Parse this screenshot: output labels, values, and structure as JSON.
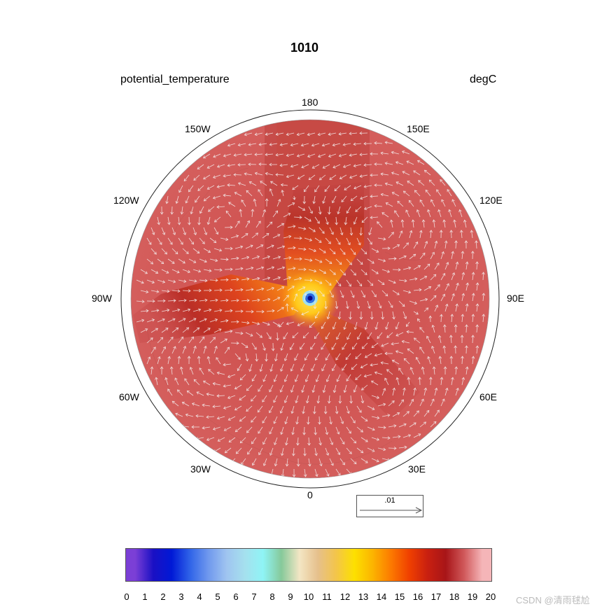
{
  "title": "1010",
  "variable_label": "potential_temperature",
  "units_label": "degC",
  "longitude_labels": {
    "top": "180",
    "upper_left": "150W",
    "upper_right": "150E",
    "left_upper": "120W",
    "right_upper": "120E",
    "left": "90W",
    "right": "90E",
    "left_lower": "60W",
    "right_lower": "60E",
    "lower_left": "30W",
    "lower_right": "30E",
    "bottom": "0"
  },
  "reference_vector": ".01",
  "colorbar": {
    "ticks": [
      "0",
      "1",
      "2",
      "3",
      "4",
      "5",
      "6",
      "7",
      "8",
      "9",
      "10",
      "11",
      "12",
      "13",
      "14",
      "15",
      "16",
      "17",
      "18",
      "19",
      "20"
    ],
    "colors": [
      "#7b3fd6",
      "#1a10c4",
      "#0019d6",
      "#2f63e8",
      "#6f98ee",
      "#9fc4f0",
      "#a5e0ee",
      "#8ff4f6",
      "#86c99a",
      "#f3e6c4",
      "#e6c08c",
      "#f3c54a",
      "#fde000",
      "#fcb400",
      "#fc7a00",
      "#f04000",
      "#c92010",
      "#a81518",
      "#d0585a",
      "#f5b5b8"
    ]
  },
  "watermark": "CSDN @清雨毬尬"
}
